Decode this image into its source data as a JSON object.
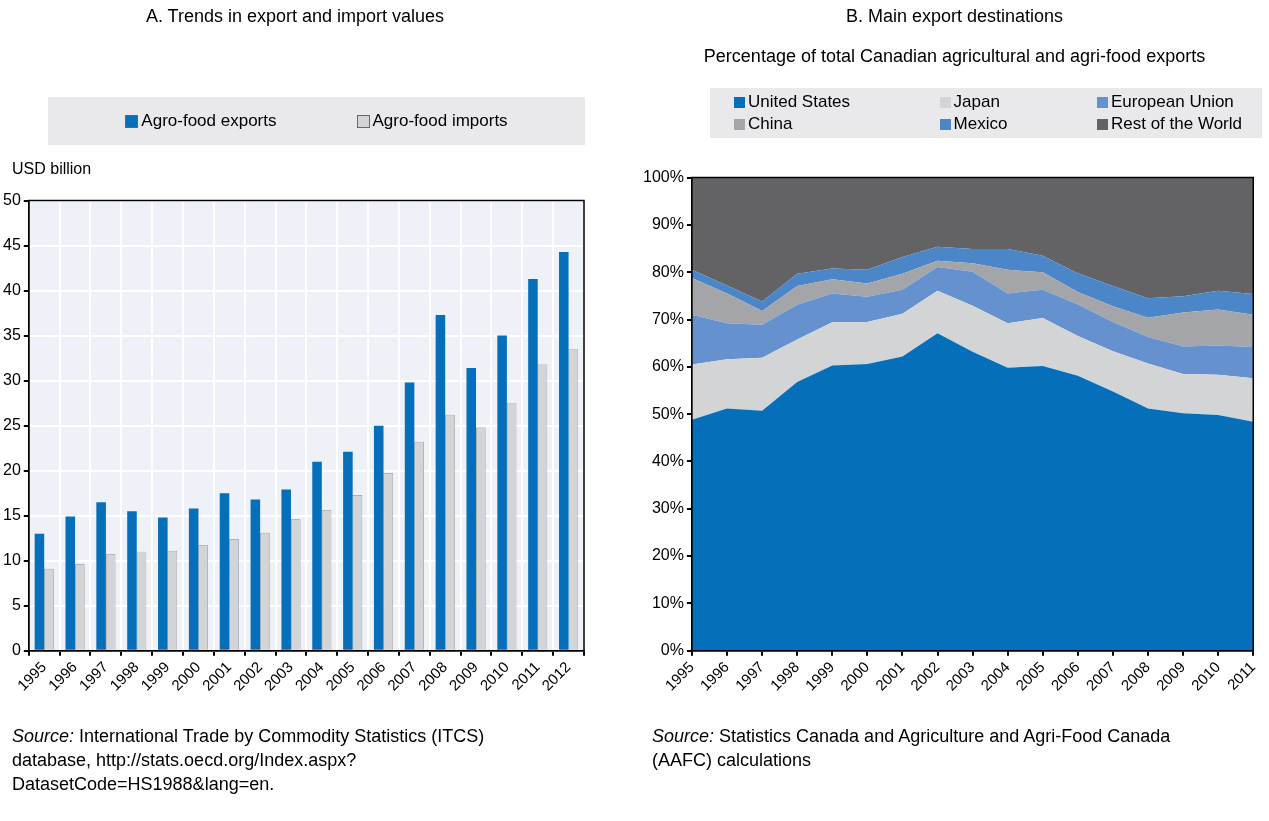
{
  "chart_data": [
    {
      "type": "bar",
      "title": "A. Trends in export and import values",
      "ylabel": "USD billion",
      "categories": [
        "1995",
        "1996",
        "1997",
        "1998",
        "1999",
        "2000",
        "2001",
        "2002",
        "2003",
        "2004",
        "2005",
        "2006",
        "2007",
        "2008",
        "2009",
        "2010",
        "2011",
        "2012"
      ],
      "series": [
        {
          "name": "Agro-food exports",
          "color": "#0570b9",
          "values": [
            13.0,
            14.9,
            16.5,
            15.5,
            14.8,
            15.8,
            17.5,
            16.8,
            17.9,
            21.0,
            22.1,
            25.0,
            29.8,
            37.3,
            31.4,
            35.0,
            41.3,
            44.3
          ]
        },
        {
          "name": "Agro-food imports",
          "color": "#d3d4d6",
          "values": [
            9.1,
            9.6,
            10.7,
            11.0,
            11.1,
            11.7,
            12.4,
            13.1,
            14.6,
            15.6,
            17.3,
            19.7,
            23.2,
            26.2,
            24.8,
            27.5,
            31.8,
            33.5
          ]
        }
      ],
      "ylim": [
        0,
        50
      ],
      "yticks": [
        0,
        5,
        10,
        15,
        20,
        25,
        30,
        35,
        40,
        45,
        50
      ],
      "grid": true,
      "legend": "top",
      "annotations": [
        "Source: International Trade by Commodity Statistics (ITCS) database, http://stats.oecd.org/Index.aspx?DatasetCode=HS1988&lang=en."
      ]
    },
    {
      "type": "area",
      "stacked": true,
      "title": "B. Main export destinations",
      "subtitle": "Percentage of total Canadian agricultural and agri-food exports",
      "categories": [
        "1995",
        "1996",
        "1997",
        "1998",
        "1999",
        "2000",
        "2001",
        "2002",
        "2003",
        "2004",
        "2005",
        "2006",
        "2007",
        "2008",
        "2009",
        "2010",
        "2011"
      ],
      "series": [
        {
          "name": "United States",
          "color": "#0570b9",
          "values": [
            48.8,
            51.2,
            50.7,
            56.8,
            60.3,
            60.6,
            62.2,
            67.1,
            63.2,
            59.8,
            60.2,
            58.1,
            54.8,
            51.2,
            50.2,
            49.8,
            48.4
          ]
        },
        {
          "name": "Japan",
          "color": "#d3d4d6",
          "values": [
            11.7,
            10.4,
            11.2,
            9.0,
            9.1,
            8.9,
            9.0,
            9.0,
            9.7,
            9.4,
            10.1,
            8.4,
            8.5,
            9.5,
            8.3,
            8.5,
            9.2
          ]
        },
        {
          "name": "European Union",
          "color": "#6591cf",
          "values": [
            10.5,
            7.6,
            7.0,
            7.3,
            6.1,
            5.3,
            5.1,
            5.0,
            7.2,
            6.3,
            6.0,
            6.7,
            6.2,
            5.6,
            5.8,
            6.2,
            6.6
          ]
        },
        {
          "name": "China",
          "color": "#a3a5a9",
          "values": [
            7.8,
            6.3,
            2.9,
            4.0,
            3.0,
            2.8,
            3.4,
            1.3,
            1.8,
            5.0,
            3.7,
            2.6,
            3.3,
            4.1,
            7.2,
            7.6,
            6.8
          ]
        },
        {
          "name": "Mexico",
          "color": "#4a86c8",
          "values": [
            1.7,
            1.7,
            2.0,
            2.6,
            2.3,
            2.9,
            3.5,
            3.0,
            3.0,
            4.4,
            3.5,
            4.0,
            4.3,
            4.1,
            3.4,
            4.0,
            4.4
          ]
        },
        {
          "name": "Rest of the World",
          "color": "#636366",
          "values": [
            19.5,
            22.8,
            26.2,
            20.3,
            19.2,
            19.5,
            16.8,
            14.6,
            15.1,
            15.1,
            16.5,
            20.2,
            22.9,
            25.5,
            25.1,
            23.9,
            24.6
          ]
        }
      ],
      "ylim": [
        0,
        100
      ],
      "yticks": [
        {
          "value": 0,
          "label": "0%"
        },
        {
          "value": 10,
          "label": "10%"
        },
        {
          "value": 20,
          "label": "20%"
        },
        {
          "value": 30,
          "label": "30%"
        },
        {
          "value": 40,
          "label": "40%"
        },
        {
          "value": 50,
          "label": "50%"
        },
        {
          "value": 60,
          "label": "60%"
        },
        {
          "value": 70,
          "label": "70%"
        },
        {
          "value": 80,
          "label": "80%"
        },
        {
          "value": 90,
          "label": "90%"
        },
        {
          "value": 100,
          "label": "100%"
        }
      ],
      "legend": "top",
      "annotations": [
        "Source: Statistics Canada and Agriculture and Agri-Food Canada (AAFC) calculations"
      ]
    }
  ]
}
